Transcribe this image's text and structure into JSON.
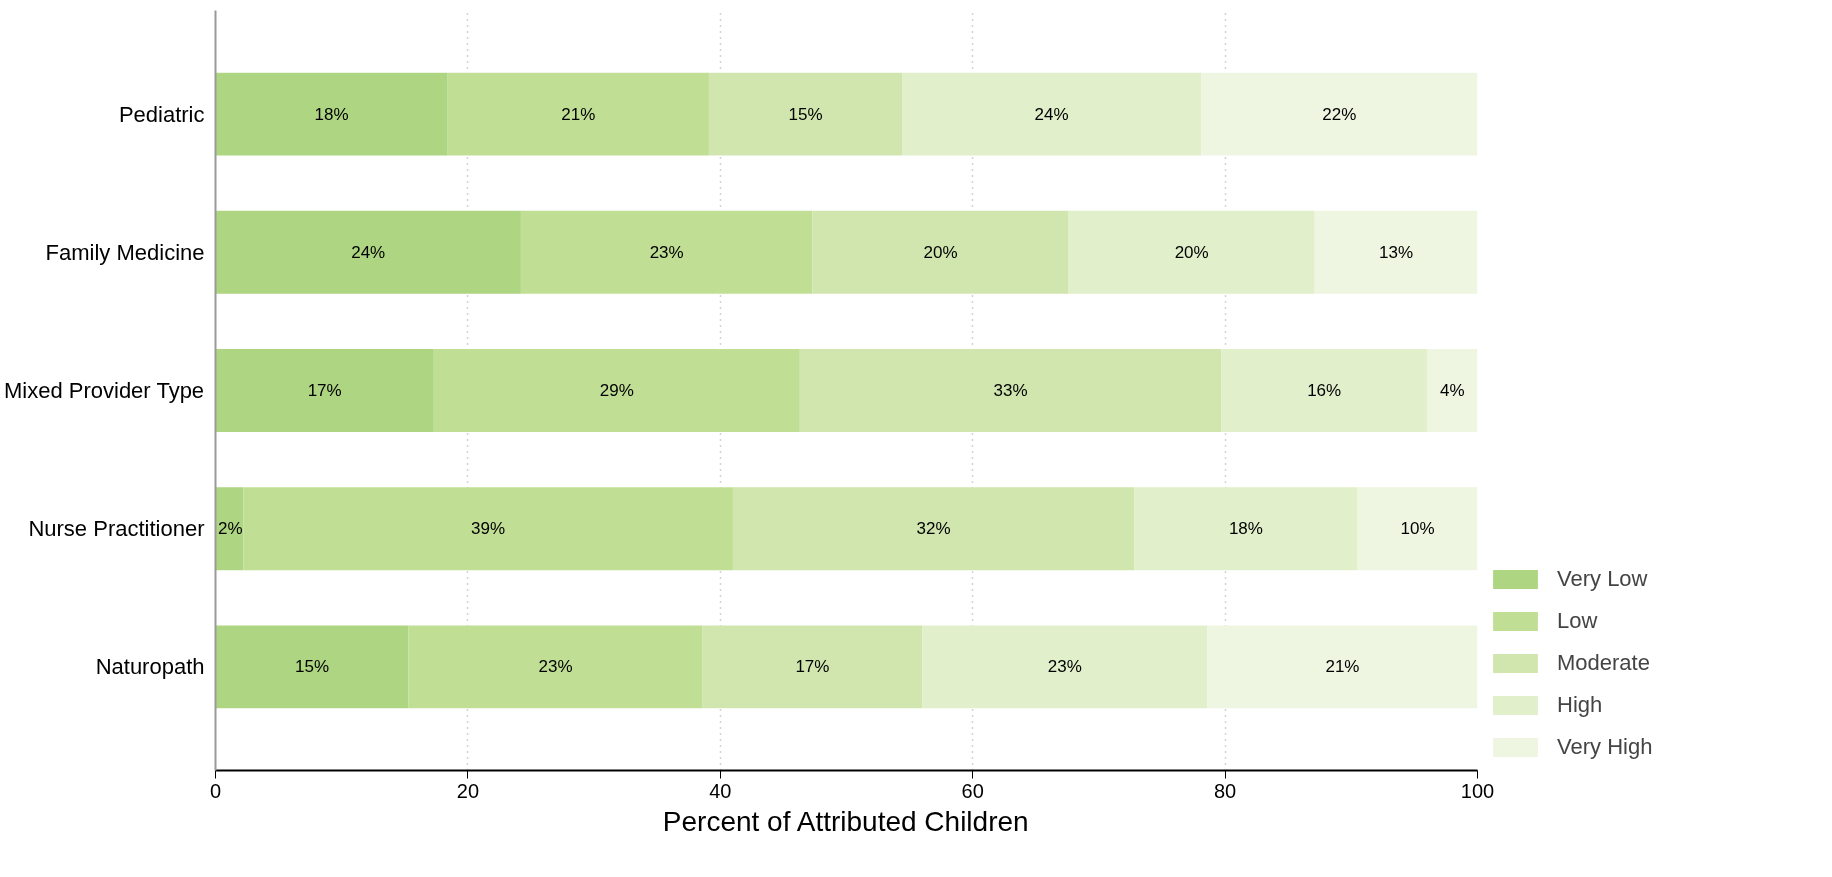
{
  "chart_data": {
    "type": "bar",
    "orientation": "horizontal",
    "stacked": true,
    "xlabel": "Percent of Attributed Children",
    "categories": [
      "Pediatric",
      "Family Medicine",
      "Mixed Provider Type",
      "Nurse Practitioner",
      "Naturopath"
    ],
    "series": [
      {
        "name": "Very Low",
        "color": "#aed581",
        "values": [
          18.4,
          24.2,
          17.3,
          2.2,
          15.3
        ],
        "value_labels": [
          "18%",
          "24%",
          "17%",
          "2%",
          "15%"
        ]
      },
      {
        "name": "Low",
        "color": "#c0df95",
        "values": [
          20.7,
          23.1,
          29.0,
          38.8,
          23.3
        ],
        "value_labels": [
          "21%",
          "23%",
          "29%",
          "39%",
          "23%"
        ]
      },
      {
        "name": "Moderate",
        "color": "#d0e6ae",
        "values": [
          15.3,
          20.3,
          33.4,
          31.8,
          17.4
        ],
        "value_labels": [
          "15%",
          "20%",
          "33%",
          "32%",
          "17%"
        ]
      },
      {
        "name": "High",
        "color": "#e1efca",
        "values": [
          23.7,
          19.5,
          16.3,
          17.7,
          22.6
        ],
        "value_labels": [
          "24%",
          "20%",
          "16%",
          "18%",
          "23%"
        ]
      },
      {
        "name": "Very High",
        "color": "#eef5e1",
        "values": [
          21.9,
          12.9,
          4.0,
          9.5,
          21.4
        ],
        "value_labels": [
          "22%",
          "13%",
          "4%",
          "10%",
          "21%"
        ]
      }
    ],
    "xlim": [
      0,
      100
    ],
    "xticks": [
      0,
      20,
      40,
      60,
      80,
      100
    ],
    "grid": "x",
    "legend": "right"
  }
}
